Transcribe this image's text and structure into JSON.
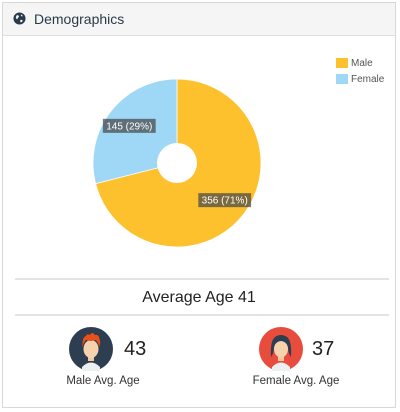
{
  "header": {
    "title": "Demographics",
    "icon": "globe-icon"
  },
  "chart_data": {
    "type": "pie",
    "donut": true,
    "categories": [
      "Male",
      "Female"
    ],
    "values": [
      356,
      145
    ],
    "labels": [
      "356 (71%)",
      "145 (29%)"
    ],
    "colors": [
      "#fdc12e",
      "#9fd7f7"
    ],
    "legend": "top-right"
  },
  "legend": {
    "items": [
      {
        "label": "Male",
        "color": "#fdc12e"
      },
      {
        "label": "Female",
        "color": "#9fd7f7"
      }
    ]
  },
  "summary": {
    "average_age": "Average Age 41"
  },
  "male": {
    "age": "43",
    "label": "Male Avg. Age",
    "icon": "male-avatar-icon"
  },
  "female": {
    "age": "37",
    "label": "Female Avg. Age",
    "icon": "female-avatar-icon"
  }
}
